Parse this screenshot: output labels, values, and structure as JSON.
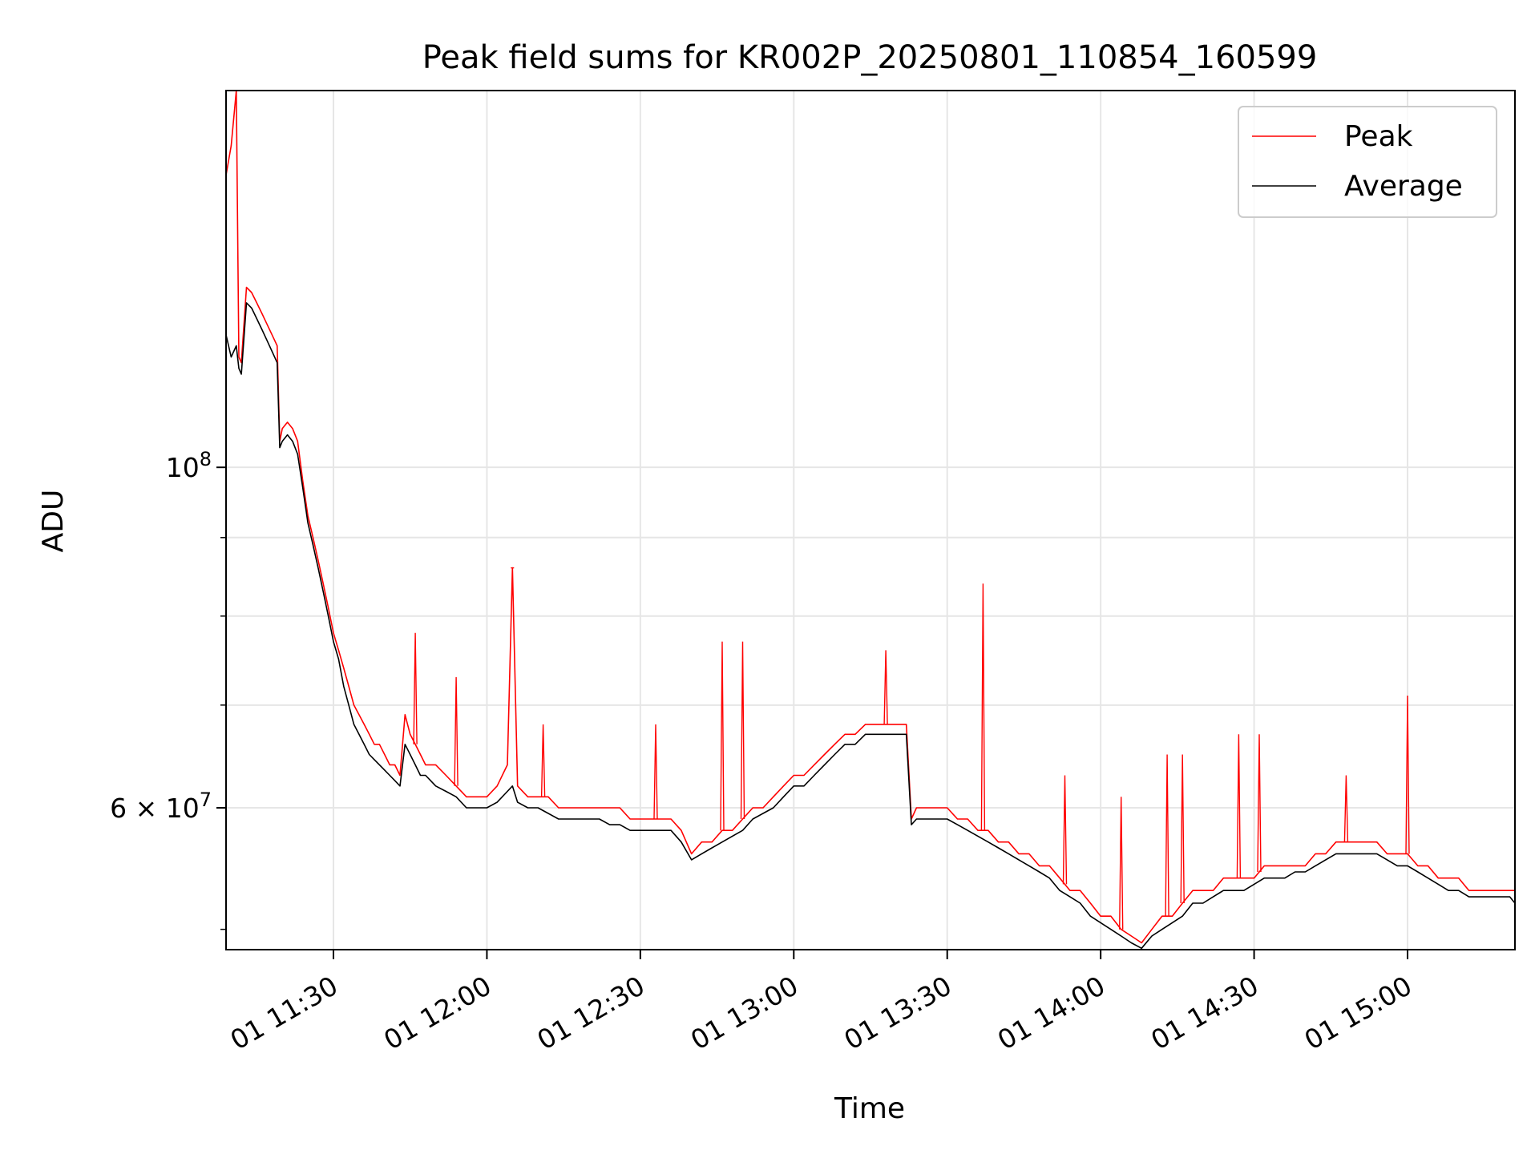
{
  "chart_data": {
    "type": "line",
    "title": "Peak field sums for KR002P_20250801_110854_160599",
    "xlabel": "Time",
    "ylabel": "ADU",
    "y_scale": "log",
    "ylim": [
      48500000,
      176000000
    ],
    "xlim": [
      "2025-08-01 11:09:00",
      "2025-08-01 15:21:00"
    ],
    "x_ticks": [
      {
        "label": "01 11:30",
        "value": "2025-08-01 11:30:00"
      },
      {
        "label": "01 12:00",
        "value": "2025-08-01 12:00:00"
      },
      {
        "label": "01 12:30",
        "value": "2025-08-01 12:30:00"
      },
      {
        "label": "01 13:00",
        "value": "2025-08-01 13:00:00"
      },
      {
        "label": "01 13:30",
        "value": "2025-08-01 13:30:00"
      },
      {
        "label": "01 14:00",
        "value": "2025-08-01 14:00:00"
      },
      {
        "label": "01 14:30",
        "value": "2025-08-01 14:30:00"
      },
      {
        "label": "01 15:00",
        "value": "2025-08-01 15:00:00"
      }
    ],
    "y_ticks": [
      {
        "label_base": "10",
        "label_exp": "8",
        "value": 100000000
      },
      {
        "label_base": "6 × 10",
        "label_exp": "7",
        "value": 60000000
      }
    ],
    "y_minor_grid": [
      70000000,
      80000000,
      90000000
    ],
    "grid": true,
    "legend_position": "top-right",
    "series": [
      {
        "name": "Peak",
        "color": "#ff0000",
        "x": [
          "11:09",
          "11:10",
          "11:11",
          "11:11:30",
          "11:12",
          "11:13",
          "11:14",
          "11:15",
          "11:16",
          "11:17",
          "11:18",
          "11:19",
          "11:19:30",
          "11:20",
          "11:21",
          "11:22",
          "11:23",
          "11:24",
          "11:25",
          "11:26",
          "11:27",
          "11:28",
          "11:29",
          "11:30",
          "11:31",
          "11:32",
          "11:33",
          "11:34",
          "11:35",
          "11:36",
          "11:37",
          "11:38",
          "11:39",
          "11:40",
          "11:41",
          "11:42",
          "11:43",
          "11:44",
          "11:45",
          "11:46",
          "11:47",
          "11:48",
          "11:49",
          "11:50",
          "11:52",
          "11:54",
          "11:56",
          "11:58",
          "12:00",
          "12:02",
          "12:04",
          "12:05",
          "12:06",
          "12:08",
          "12:10",
          "12:12",
          "12:14",
          "12:16",
          "12:18",
          "12:20",
          "12:22",
          "12:24",
          "12:26",
          "12:28",
          "12:30",
          "12:32",
          "12:34",
          "12:36",
          "12:38",
          "12:40",
          "12:42",
          "12:44",
          "12:46",
          "12:48",
          "12:50",
          "12:52",
          "12:54",
          "12:56",
          "12:58",
          "13:00",
          "13:02",
          "13:04",
          "13:06",
          "13:08",
          "13:10",
          "13:12",
          "13:14",
          "13:16",
          "13:18",
          "13:20",
          "13:22",
          "13:23",
          "13:24",
          "13:26",
          "13:28",
          "13:30",
          "13:32",
          "13:34",
          "13:36",
          "13:38",
          "13:40",
          "13:42",
          "13:44",
          "13:46",
          "13:48",
          "13:50",
          "13:52",
          "13:54",
          "13:56",
          "13:58",
          "14:00",
          "14:02",
          "14:04",
          "14:06",
          "14:08",
          "14:10",
          "14:12",
          "14:14",
          "14:16",
          "14:18",
          "14:20",
          "14:22",
          "14:24",
          "14:26",
          "14:28",
          "14:30",
          "14:32",
          "14:34",
          "14:36",
          "14:38",
          "14:40",
          "14:42",
          "14:44",
          "14:46",
          "14:48",
          "14:50",
          "14:52",
          "14:54",
          "14:56",
          "14:58",
          "15:00",
          "15:02",
          "15:04",
          "15:06",
          "15:08",
          "15:10",
          "15:12",
          "15:14",
          "15:16",
          "15:18",
          "15:20",
          "15:21"
        ],
        "values": [
          155000000,
          162000000,
          176000000,
          118000000,
          117000000,
          131000000,
          130000000,
          128000000,
          126000000,
          124000000,
          122000000,
          120000000,
          104000000,
          106000000,
          107000000,
          106000000,
          104000000,
          98000000,
          93000000,
          90000000,
          87000000,
          84000000,
          81000000,
          78000000,
          76000000,
          74000000,
          72000000,
          70000000,
          69000000,
          68000000,
          67000000,
          66000000,
          66000000,
          65000000,
          64000000,
          64000000,
          63000000,
          69000000,
          67000000,
          66000000,
          65000000,
          64000000,
          64000000,
          64000000,
          63000000,
          62000000,
          61000000,
          61000000,
          61000000,
          62000000,
          64000000,
          86000000,
          62000000,
          61000000,
          61000000,
          61000000,
          60000000,
          60000000,
          60000000,
          60000000,
          60000000,
          60000000,
          60000000,
          59000000,
          59000000,
          59000000,
          59000000,
          59000000,
          58000000,
          56000000,
          57000000,
          57000000,
          58000000,
          58000000,
          59000000,
          60000000,
          60000000,
          61000000,
          62000000,
          63000000,
          63000000,
          64000000,
          65000000,
          66000000,
          67000000,
          67000000,
          68000000,
          68000000,
          68000000,
          68000000,
          68000000,
          59000000,
          60000000,
          60000000,
          60000000,
          60000000,
          59000000,
          59000000,
          58000000,
          58000000,
          57000000,
          57000000,
          56000000,
          56000000,
          55000000,
          55000000,
          54000000,
          53000000,
          53000000,
          52000000,
          51000000,
          51000000,
          50000000,
          49500000,
          49000000,
          50000000,
          51000000,
          51000000,
          52000000,
          53000000,
          53000000,
          53000000,
          54000000,
          54000000,
          54000000,
          54000000,
          55000000,
          55000000,
          55000000,
          55000000,
          55000000,
          56000000,
          56000000,
          57000000,
          57000000,
          57000000,
          57000000,
          57000000,
          56000000,
          56000000,
          56000000,
          55000000,
          55000000,
          54000000,
          54000000,
          54000000,
          53000000,
          53000000,
          53000000,
          53000000,
          53000000,
          53000000
        ],
        "spikes": [
          {
            "x": "11:46",
            "value": 78000000
          },
          {
            "x": "11:54",
            "value": 73000000
          },
          {
            "x": "12:05",
            "value": 86000000
          },
          {
            "x": "12:11",
            "value": 68000000
          },
          {
            "x": "12:33",
            "value": 68000000
          },
          {
            "x": "12:46",
            "value": 77000000
          },
          {
            "x": "12:50",
            "value": 77000000
          },
          {
            "x": "13:18",
            "value": 76000000
          },
          {
            "x": "13:37",
            "value": 84000000
          },
          {
            "x": "13:53",
            "value": 63000000
          },
          {
            "x": "14:04",
            "value": 61000000
          },
          {
            "x": "14:13",
            "value": 65000000
          },
          {
            "x": "14:16",
            "value": 65000000
          },
          {
            "x": "14:27",
            "value": 67000000
          },
          {
            "x": "14:31",
            "value": 67000000
          },
          {
            "x": "14:48",
            "value": 63000000
          },
          {
            "x": "15:00",
            "value": 71000000
          }
        ]
      },
      {
        "name": "Average",
        "color": "#000000",
        "x": [
          "11:09",
          "11:10",
          "11:11",
          "11:11:30",
          "11:12",
          "11:13",
          "11:14",
          "11:15",
          "11:16",
          "11:17",
          "11:18",
          "11:19",
          "11:19:30",
          "11:20",
          "11:21",
          "11:22",
          "11:23",
          "11:24",
          "11:25",
          "11:26",
          "11:27",
          "11:28",
          "11:29",
          "11:30",
          "11:31",
          "11:32",
          "11:33",
          "11:34",
          "11:35",
          "11:36",
          "11:37",
          "11:38",
          "11:39",
          "11:40",
          "11:41",
          "11:42",
          "11:43",
          "11:44",
          "11:45",
          "11:46",
          "11:47",
          "11:48",
          "11:49",
          "11:50",
          "11:52",
          "11:54",
          "11:56",
          "11:58",
          "12:00",
          "12:02",
          "12:04",
          "12:05",
          "12:06",
          "12:08",
          "12:10",
          "12:12",
          "12:14",
          "12:16",
          "12:18",
          "12:20",
          "12:22",
          "12:24",
          "12:26",
          "12:28",
          "12:30",
          "12:32",
          "12:34",
          "12:36",
          "12:38",
          "12:40",
          "12:42",
          "12:44",
          "12:46",
          "12:48",
          "12:50",
          "12:52",
          "12:54",
          "12:56",
          "12:58",
          "13:00",
          "13:02",
          "13:04",
          "13:06",
          "13:08",
          "13:10",
          "13:12",
          "13:14",
          "13:16",
          "13:18",
          "13:20",
          "13:22",
          "13:23",
          "13:24",
          "13:26",
          "13:28",
          "13:30",
          "13:32",
          "13:34",
          "13:36",
          "13:38",
          "13:40",
          "13:42",
          "13:44",
          "13:46",
          "13:48",
          "13:50",
          "13:52",
          "13:54",
          "13:56",
          "13:58",
          "14:00",
          "14:02",
          "14:04",
          "14:06",
          "14:08",
          "14:10",
          "14:12",
          "14:14",
          "14:16",
          "14:18",
          "14:20",
          "14:22",
          "14:24",
          "14:26",
          "14:28",
          "14:30",
          "14:32",
          "14:34",
          "14:36",
          "14:38",
          "14:40",
          "14:42",
          "14:44",
          "14:46",
          "14:48",
          "14:50",
          "14:52",
          "14:54",
          "14:56",
          "14:58",
          "15:00",
          "15:02",
          "15:04",
          "15:06",
          "15:08",
          "15:10",
          "15:12",
          "15:14",
          "15:16",
          "15:18",
          "15:20",
          "15:21"
        ],
        "values": [
          122000000,
          118000000,
          120000000,
          116000000,
          115000000,
          128000000,
          127000000,
          125000000,
          123000000,
          121000000,
          119000000,
          117000000,
          103000000,
          104000000,
          105000000,
          104000000,
          102000000,
          97000000,
          92000000,
          89000000,
          86000000,
          83000000,
          80000000,
          77000000,
          75000000,
          72000000,
          70000000,
          68000000,
          67000000,
          66000000,
          65000000,
          64500000,
          64000000,
          63500000,
          63000000,
          62500000,
          62000000,
          66000000,
          65000000,
          64000000,
          63000000,
          63000000,
          62500000,
          62000000,
          61500000,
          61000000,
          60000000,
          60000000,
          60000000,
          60500000,
          61500000,
          62000000,
          60500000,
          60000000,
          60000000,
          59500000,
          59000000,
          59000000,
          59000000,
          59000000,
          59000000,
          58500000,
          58500000,
          58000000,
          58000000,
          58000000,
          58000000,
          58000000,
          57000000,
          55500000,
          56000000,
          56500000,
          57000000,
          57500000,
          58000000,
          59000000,
          59500000,
          60000000,
          61000000,
          62000000,
          62000000,
          63000000,
          64000000,
          65000000,
          66000000,
          66000000,
          67000000,
          67000000,
          67000000,
          67000000,
          67000000,
          58500000,
          59000000,
          59000000,
          59000000,
          59000000,
          58500000,
          58000000,
          57500000,
          57000000,
          56500000,
          56000000,
          55500000,
          55000000,
          54500000,
          54000000,
          53000000,
          52500000,
          52000000,
          51000000,
          50500000,
          50000000,
          49500000,
          49000000,
          48600000,
          49500000,
          50000000,
          50500000,
          51000000,
          52000000,
          52000000,
          52500000,
          53000000,
          53000000,
          53000000,
          53500000,
          54000000,
          54000000,
          54000000,
          54500000,
          54500000,
          55000000,
          55500000,
          56000000,
          56000000,
          56000000,
          56000000,
          56000000,
          55500000,
          55000000,
          55000000,
          54500000,
          54000000,
          53500000,
          53000000,
          53000000,
          52500000,
          52500000,
          52500000,
          52500000,
          52500000,
          52000000
        ]
      }
    ]
  }
}
